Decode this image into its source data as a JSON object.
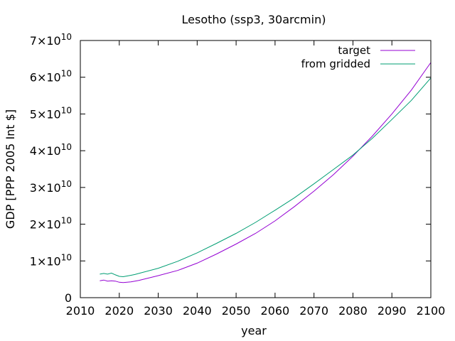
{
  "chart_data": {
    "type": "line",
    "title": "Lesotho (ssp3, 30arcmin)",
    "xlabel": "year",
    "ylabel": "GDP [PPP 2005 Int $]",
    "xlim": [
      2010,
      2100
    ],
    "ylim": [
      0,
      70000000000
    ],
    "x_ticks": [
      "2010",
      "2020",
      "2030",
      "2040",
      "2050",
      "2060",
      "2070",
      "2080",
      "2090",
      "2100"
    ],
    "y_ticks": [
      {
        "mantissa": "0",
        "exp": ""
      },
      {
        "mantissa": "1×10",
        "exp": "10"
      },
      {
        "mantissa": "2×10",
        "exp": "10"
      },
      {
        "mantissa": "3×10",
        "exp": "10"
      },
      {
        "mantissa": "4×10",
        "exp": "10"
      },
      {
        "mantissa": "5×10",
        "exp": "10"
      },
      {
        "mantissa": "6×10",
        "exp": "10"
      },
      {
        "mantissa": "7×10",
        "exp": "10"
      }
    ],
    "legend_position": "top-right",
    "grid": false,
    "x": [
      2015,
      2016,
      2017,
      2018,
      2019,
      2020,
      2021,
      2022,
      2023,
      2024,
      2025,
      2030,
      2035,
      2040,
      2045,
      2050,
      2055,
      2060,
      2065,
      2070,
      2075,
      2080,
      2085,
      2090,
      2095,
      2100
    ],
    "series": [
      {
        "name": "target",
        "color": "#9400d3",
        "values": [
          4600000000.0,
          4800000000.0,
          4500000000.0,
          4600000000.0,
          4500000000.0,
          4200000000.0,
          4100000000.0,
          4200000000.0,
          4300000000.0,
          4500000000.0,
          4700000000.0,
          6000000000.0,
          7400000000.0,
          9400000000.0,
          11900000000.0,
          14600000000.0,
          17500000000.0,
          20900000000.0,
          24800000000.0,
          29000000000.0,
          33500000000.0,
          38500000000.0,
          44000000000.0,
          50000000000.0,
          56500000000.0,
          64000000000.0
        ]
      },
      {
        "name": "from gridded",
        "color": "#009e73",
        "values": [
          6400000000.0,
          6600000000.0,
          6400000000.0,
          6700000000.0,
          6200000000.0,
          5800000000.0,
          5700000000.0,
          5900000000.0,
          6100000000.0,
          6300000000.0,
          6600000000.0,
          8000000000.0,
          9900000000.0,
          12200000000.0,
          14800000000.0,
          17500000000.0,
          20500000000.0,
          23800000000.0,
          27200000000.0,
          31000000000.0,
          34900000000.0,
          38800000000.0,
          43400000000.0,
          48500000000.0,
          53700000000.0,
          59800000000.0
        ]
      }
    ]
  }
}
